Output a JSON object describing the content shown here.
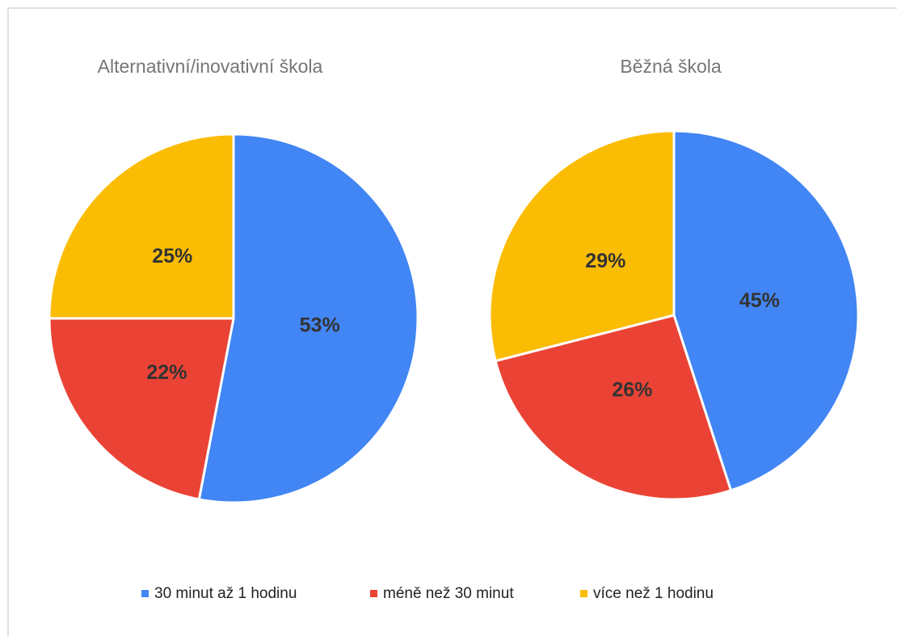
{
  "chart_data": [
    {
      "type": "pie",
      "title": "Alternativní/inovativní škola",
      "values": [
        53,
        22,
        25
      ],
      "value_labels": [
        "53%",
        "22%",
        "25%"
      ]
    },
    {
      "type": "pie",
      "title": "Běžná škola",
      "values": [
        45,
        26,
        29
      ],
      "value_labels": [
        "45%",
        "26%",
        "29%"
      ]
    }
  ],
  "legend": {
    "labels": [
      "30 minut až 1 hodinu",
      "méně než 30 minut",
      "více než 1 hodinu"
    ],
    "colors": [
      "#4285f4",
      "#ea4335",
      "#fbbc04"
    ]
  }
}
